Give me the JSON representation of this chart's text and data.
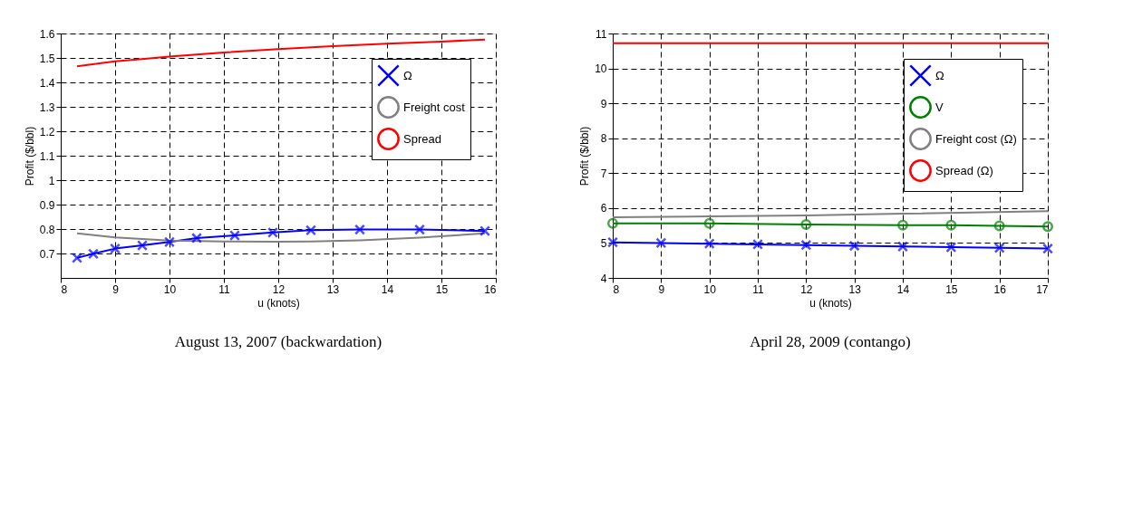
{
  "chart_data": [
    {
      "type": "line",
      "title": "August 13, 2007 (backwardation)",
      "xlabel": "u (knots)",
      "ylabel": "Profit ($/bbl)",
      "xlim": [
        8,
        16
      ],
      "xticks": [
        8,
        9,
        10,
        11,
        12,
        13,
        14,
        15,
        16
      ],
      "ylim": [
        0.6,
        1.6
      ],
      "yticks": [
        0.7,
        0.8,
        0.9,
        1,
        1.1,
        1.2,
        1.3,
        1.4,
        1.5,
        1.6
      ],
      "grid": true,
      "legend": "top right",
      "line_style": "solid",
      "series": [
        {
          "name": "Ω",
          "color": "#0000ff",
          "marker": "cross",
          "x": [
            8.3,
            8.6,
            9.0,
            9.5,
            10.0,
            10.5,
            11.2,
            11.9,
            12.6,
            13.5,
            14.6,
            15.8
          ],
          "values": [
            0.682,
            0.699,
            0.72,
            0.733,
            0.747,
            0.763,
            0.774,
            0.786,
            0.795,
            0.798,
            0.798,
            0.792
          ]
        },
        {
          "name": "Freight cost",
          "color": "#808080",
          "marker": "none",
          "x": [
            8.3,
            9,
            10,
            11,
            12,
            12.6,
            13.5,
            14.6,
            15.8
          ],
          "values": [
            0.782,
            0.766,
            0.753,
            0.749,
            0.748,
            0.749,
            0.754,
            0.765,
            0.782
          ]
        },
        {
          "name": "Spread",
          "color": "#ff0000",
          "marker": "none",
          "x": [
            8.3,
            9,
            9.5,
            10,
            11,
            12,
            13,
            14,
            15,
            15.8
          ],
          "values": [
            1.466,
            1.486,
            1.495,
            1.506,
            1.522,
            1.536,
            1.548,
            1.558,
            1.567,
            1.575
          ]
        }
      ]
    },
    {
      "type": "line",
      "title": "April 28, 2009 (contango)",
      "xlabel": "u (knots)",
      "ylabel": "Profit ($/bbl)",
      "xlim": [
        8,
        17
      ],
      "xticks": [
        8,
        9,
        10,
        11,
        12,
        13,
        14,
        15,
        16,
        17
      ],
      "ylim": [
        4,
        11
      ],
      "yticks": [
        4,
        5,
        6,
        7,
        8,
        9,
        10,
        11
      ],
      "grid": true,
      "legend": "top right",
      "line_style": "solid",
      "series": [
        {
          "name": "Ω",
          "color": "#0000ff",
          "marker": "cross",
          "x": [
            8,
            9,
            10,
            11,
            12,
            13,
            14,
            15,
            16,
            17
          ],
          "values": [
            5.02,
            5.0,
            4.98,
            4.96,
            4.94,
            4.92,
            4.9,
            4.88,
            4.86,
            4.84
          ]
        },
        {
          "name": "V",
          "color": "#008000",
          "marker": "circle",
          "x": [
            8,
            10,
            12,
            14,
            15,
            16,
            17
          ],
          "values": [
            5.56,
            5.56,
            5.53,
            5.51,
            5.51,
            5.49,
            5.47
          ]
        },
        {
          "name": "Freight cost (Ω)",
          "color": "#808080",
          "marker": "none",
          "x": [
            8,
            10,
            12,
            14,
            17
          ],
          "values": [
            5.74,
            5.76,
            5.79,
            5.84,
            5.91
          ]
        },
        {
          "name": "Spread (Ω)",
          "color": "#ff0000",
          "marker": "none",
          "x": [
            8,
            17
          ],
          "values": [
            10.72,
            10.72
          ]
        }
      ]
    }
  ]
}
